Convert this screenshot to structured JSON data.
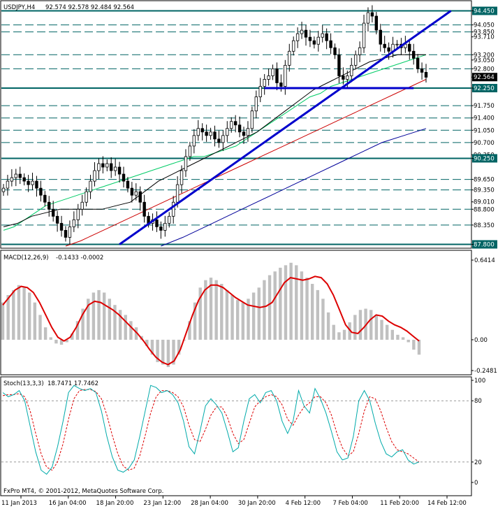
{
  "header": {
    "symbol": "USDJPY,H4",
    "ohlc": "92.574 92.578 92.484 92.564"
  },
  "macd": {
    "title": "MACD(12,26,9)",
    "values": "-0.1433 -0.0002",
    "scale_labels": [
      "0.6414",
      "0.00",
      "-0.2481"
    ]
  },
  "stoch": {
    "title": "Stoch(13,3,3)",
    "values": "18.7471 17.7462",
    "scale_labels": [
      "100",
      "80",
      "20",
      "0"
    ]
  },
  "footer": {
    "copyright": "FxPro MT4, © 2001-2012, MetaQuotes Software Corp."
  },
  "colors": {
    "candles": "#000000",
    "level_lines": "#006464",
    "trendline": "#0000cc",
    "ma_green": "#00cc66",
    "ma_black": "#000000",
    "ma_red": "#cc0000",
    "ma_navy": "#000099",
    "macd_hist": "#c0c0c0",
    "macd_signal": "#dd0000",
    "stoch_main": "#00aaaa",
    "stoch_signal": "#dd0000",
    "current_price_bg": "#000000"
  },
  "chart_data": [
    {
      "type": "candlestick",
      "title": "USDJPY,H4",
      "y_scale_labels": [
        "94.450",
        "94.050",
        "93.850",
        "93.710",
        "93.200",
        "93.050",
        "92.800",
        "92.564",
        "92.250",
        "91.750",
        "91.400",
        "91.050",
        "90.700",
        "90.350",
        "90.250",
        "89.650",
        "89.350",
        "89.010",
        "88.800",
        "88.350",
        "87.800"
      ],
      "highlighted_labels": [
        "94.450",
        "92.564",
        "92.250",
        "90.250",
        "87.800"
      ],
      "x_tick_labels": [
        "11 Jan 2013",
        "16 Jan 04:00",
        "18 Jan 20:00",
        "23 Jan 12:00",
        "28 Jan 04:00",
        "30 Jan 20:00",
        "4 Feb 12:00",
        "7 Feb 04:00",
        "11 Feb 20:00",
        "14 Feb 12:00"
      ],
      "ylim": [
        87.75,
        94.6
      ],
      "horizontal_levels": [
        94.45,
        94.05,
        93.85,
        93.2,
        92.8,
        92.25,
        91.75,
        91.4,
        91.05,
        90.7,
        90.25,
        89.65,
        89.35,
        88.8,
        88.35,
        87.8
      ],
      "trendlines": [
        {
          "from": [
            28,
            87.8
          ],
          "to": [
            108,
            94.45
          ]
        },
        {
          "from": [
            63,
            92.25
          ],
          "to": [
            99,
            92.25
          ]
        }
      ],
      "close": [
        89.4,
        89.6,
        89.7,
        89.8,
        89.7,
        89.6,
        89.5,
        89.6,
        89.4,
        89.2,
        89.0,
        88.8,
        88.6,
        88.4,
        88.2,
        88.0,
        88.3,
        88.5,
        88.8,
        89.0,
        89.3,
        89.6,
        89.9,
        90.1,
        90.0,
        90.1,
        89.9,
        90.0,
        89.8,
        89.6,
        89.4,
        89.2,
        89.3,
        89.0,
        88.6,
        88.4,
        88.5,
        88.3,
        88.2,
        88.4,
        88.6,
        89.0,
        89.5,
        89.9,
        90.3,
        90.6,
        90.9,
        91.1,
        91.0,
        90.9,
        91.0,
        90.8,
        90.7,
        90.9,
        91.1,
        91.3,
        91.2,
        91.0,
        90.9,
        91.1,
        91.6,
        92.0,
        92.3,
        92.5,
        92.6,
        92.8,
        92.4,
        92.3,
        92.9,
        93.3,
        93.6,
        93.8,
        93.9,
        93.7,
        93.6,
        93.5,
        93.7,
        93.8,
        93.6,
        93.4,
        93.2,
        92.6,
        92.5,
        92.6,
        92.9,
        93.2,
        93.4,
        94.1,
        94.4,
        94.3,
        93.9,
        93.5,
        93.4,
        93.3,
        93.5,
        93.5,
        93.4,
        93.5,
        93.3,
        93.1,
        92.8,
        92.7,
        92.56
      ],
      "moving_averages": [
        {
          "color": "green",
          "values": [
            88.2,
            88.3,
            88.5,
            88.7,
            88.9,
            89.0,
            89.1,
            89.2,
            89.3,
            89.4,
            89.5,
            89.6,
            89.7,
            89.8,
            89.9,
            90.0,
            90.1,
            90.2,
            90.3,
            90.3,
            90.4,
            90.5,
            90.6,
            90.8,
            91.0,
            91.2,
            91.4,
            91.6,
            91.8,
            92.0,
            92.1,
            92.3,
            92.4,
            92.5,
            92.6,
            92.7,
            92.8,
            92.9,
            93.0,
            93.1,
            93.2
          ]
        },
        {
          "color": "black",
          "values": [
            88.3,
            88.4,
            88.6,
            88.7,
            88.8,
            88.8,
            88.8,
            88.8,
            88.9,
            89.0,
            89.3,
            89.6,
            89.8,
            90.0,
            90.2,
            90.4,
            90.6,
            90.8,
            91.0,
            91.3,
            91.6,
            91.9,
            92.2,
            92.4,
            92.6,
            92.8,
            93.0,
            93.1,
            93.2,
            93.2,
            93.2
          ]
        },
        {
          "color": "red",
          "values": [
            87.75,
            87.9,
            88.1,
            88.3,
            88.5,
            88.7,
            88.9,
            89.1,
            89.3,
            89.5,
            89.7,
            89.9,
            90.1,
            90.3,
            90.5,
            90.7,
            90.9,
            91.1,
            91.3,
            91.5,
            91.7,
            91.9,
            92.1,
            92.3,
            92.5
          ]
        },
        {
          "color": "navy",
          "values": [
            87.75,
            88.0,
            88.3,
            88.6,
            88.9,
            89.2,
            89.5,
            89.8,
            90.1,
            90.4,
            90.7,
            90.9,
            91.1
          ]
        }
      ]
    },
    {
      "type": "bar",
      "title": "MACD(12,26,9)",
      "ylim": [
        -0.2481,
        0.6414
      ],
      "histogram": [
        0.3,
        0.36,
        0.4,
        0.44,
        0.42,
        0.38,
        0.3,
        0.2,
        0.1,
        0.02,
        -0.03,
        -0.04,
        -0.02,
        0.05,
        0.15,
        0.25,
        0.33,
        0.38,
        0.4,
        0.38,
        0.33,
        0.28,
        0.24,
        0.2,
        0.15,
        0.1,
        0.03,
        -0.05,
        -0.12,
        -0.18,
        -0.2,
        -0.22,
        -0.2,
        -0.12,
        0.0,
        0.15,
        0.3,
        0.42,
        0.48,
        0.5,
        0.48,
        0.45,
        0.4,
        0.36,
        0.32,
        0.3,
        0.33,
        0.38,
        0.42,
        0.48,
        0.52,
        0.55,
        0.58,
        0.6,
        0.62,
        0.6,
        0.55,
        0.5,
        0.45,
        0.4,
        0.33,
        0.22,
        0.12,
        0.06,
        0.08,
        0.14,
        0.2,
        0.24,
        0.25,
        0.24,
        0.2,
        0.16,
        0.12,
        0.08,
        0.04,
        0.02,
        -0.02,
        -0.08,
        -0.12
      ],
      "signal": [
        0.28,
        0.34,
        0.4,
        0.43,
        0.42,
        0.38,
        0.3,
        0.2,
        0.1,
        0.02,
        -0.01,
        0.02,
        0.1,
        0.2,
        0.28,
        0.31,
        0.3,
        0.27,
        0.24,
        0.2,
        0.15,
        0.1,
        0.05,
        -0.01,
        -0.08,
        -0.14,
        -0.18,
        -0.2,
        -0.17,
        -0.08,
        0.06,
        0.2,
        0.32,
        0.4,
        0.44,
        0.44,
        0.42,
        0.38,
        0.34,
        0.31,
        0.28,
        0.27,
        0.26,
        0.27,
        0.3,
        0.38,
        0.46,
        0.5,
        0.49,
        0.48,
        0.49,
        0.51,
        0.5,
        0.45,
        0.36,
        0.24,
        0.12,
        0.06,
        0.05,
        0.1,
        0.16,
        0.2,
        0.19,
        0.15,
        0.12,
        0.1,
        0.07,
        0.03,
        -0.01
      ]
    },
    {
      "type": "line",
      "title": "Stoch(13,3,3)",
      "ylim": [
        0,
        100
      ],
      "levels": [
        80,
        20
      ],
      "main": [
        88,
        84,
        86,
        90,
        80,
        55,
        30,
        12,
        8,
        15,
        35,
        60,
        88,
        95,
        92,
        90,
        92,
        88,
        70,
        45,
        25,
        12,
        10,
        14,
        22,
        45,
        70,
        95,
        93,
        88,
        90,
        86,
        78,
        60,
        35,
        28,
        50,
        75,
        82,
        76,
        68,
        50,
        30,
        34,
        60,
        82,
        86,
        78,
        88,
        90,
        80,
        60,
        48,
        60,
        90,
        75,
        68,
        92,
        82,
        68,
        50,
        30,
        22,
        24,
        45,
        80,
        90,
        80,
        58,
        40,
        28,
        25,
        30,
        32,
        22,
        18,
        20
      ],
      "signal": [
        85,
        86,
        86,
        87,
        84,
        70,
        48,
        28,
        15,
        12,
        20,
        38,
        62,
        82,
        90,
        91,
        91,
        89,
        82,
        66,
        46,
        28,
        16,
        12,
        14,
        26,
        46,
        68,
        84,
        90,
        90,
        88,
        84,
        74,
        56,
        42,
        40,
        52,
        66,
        74,
        74,
        64,
        48,
        38,
        42,
        58,
        74,
        80,
        84,
        86,
        84,
        76,
        62,
        56,
        66,
        74,
        78,
        84,
        84,
        78,
        66,
        48,
        34,
        26,
        30,
        48,
        70,
        84,
        82,
        70,
        54,
        40,
        32,
        30,
        28,
        24,
        20
      ]
    }
  ]
}
